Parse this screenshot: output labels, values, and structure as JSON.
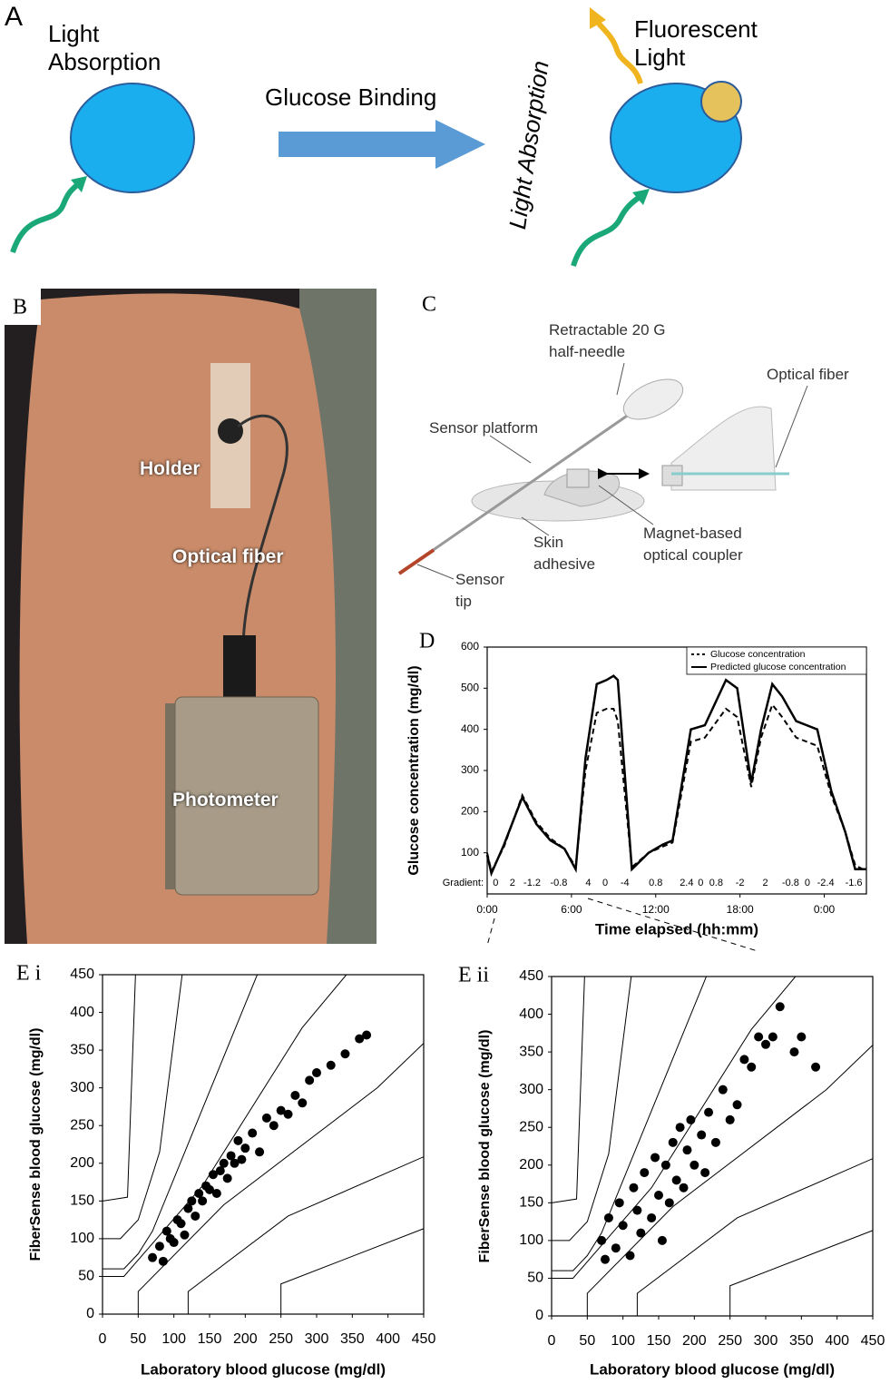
{
  "panel_a": {
    "label": "A",
    "left_text": "Light Absorption",
    "arrow_text": "Glucose Binding",
    "rotated_text": "Light Absorption",
    "right_text": "Fluorescent Light"
  },
  "panel_b": {
    "label": "B",
    "holder": "Holder",
    "fiber": "Optical fiber",
    "photometer": "Photometer"
  },
  "panel_c": {
    "label": "C",
    "needle": "Retractable 20 G half-needle",
    "platform": "Sensor platform",
    "fiber": "Optical fiber",
    "adhesive": "Skin adhesive",
    "coupler": "Magnet-based optical coupler",
    "tip": "Sensor tip"
  },
  "chart_data": [
    {
      "type": "line",
      "label": "D",
      "xlabel": "Time elapsed (hh:mm)",
      "ylabel": "Glucose concentration (mg/dl)",
      "xlim": [
        0,
        27
      ],
      "ylim": [
        0,
        600
      ],
      "xticks": [
        {
          "value": 0,
          "label": "0:00"
        },
        {
          "value": 6,
          "label": "6:00"
        },
        {
          "value": 12,
          "label": "12:00"
        },
        {
          "value": 18,
          "label": "18:00"
        },
        {
          "value": 24,
          "label": "0:00"
        }
      ],
      "yticks": [
        100,
        200,
        300,
        400,
        500,
        600
      ],
      "legend": "upper right",
      "gradient_label": "Gradient:",
      "gradients": [
        {
          "x": 0.6,
          "value": 0
        },
        {
          "x": 1.8,
          "value": 2
        },
        {
          "x": 3.2,
          "value": -1.2
        },
        {
          "x": 5.1,
          "value": -0.8
        },
        {
          "x": 7.2,
          "value": 4
        },
        {
          "x": 8.4,
          "value": 0
        },
        {
          "x": 9.8,
          "value": -4
        },
        {
          "x": 12.0,
          "value": 0.8
        },
        {
          "x": 14.2,
          "value": 2.4
        },
        {
          "x": 15.2,
          "value": 0
        },
        {
          "x": 16.3,
          "value": 0.8
        },
        {
          "x": 18.0,
          "value": -2
        },
        {
          "x": 19.8,
          "value": 2
        },
        {
          "x": 21.6,
          "value": -0.8
        },
        {
          "x": 22.8,
          "value": 0
        },
        {
          "x": 24.1,
          "value": -2.4
        },
        {
          "x": 26.1,
          "value": -1.6
        }
      ],
      "x": [
        0,
        0.3,
        1.2,
        2.5,
        3.5,
        4.5,
        5.5,
        6.3,
        7.0,
        7.8,
        8.5,
        9.0,
        9.3,
        10.3,
        11.5,
        12.5,
        13.2,
        14.5,
        15.5,
        17.0,
        17.8,
        18.8,
        19.5,
        20.3,
        21.0,
        22.0,
        23.5,
        24.5,
        25.5,
        26.2,
        27.0
      ],
      "series": [
        {
          "name": "Glucose concentration",
          "color": "#000000",
          "style": "dashed",
          "values": [
            100,
            55,
            115,
            240,
            175,
            135,
            110,
            65,
            300,
            440,
            450,
            450,
            420,
            65,
            100,
            115,
            125,
            370,
            380,
            450,
            430,
            260,
            380,
            460,
            430,
            380,
            360,
            240,
            150,
            70,
            55
          ]
        },
        {
          "name": "Predicted glucose concentration",
          "color": "#000000",
          "style": "solid",
          "values": [
            95,
            50,
            120,
            235,
            170,
            130,
            110,
            60,
            330,
            510,
            520,
            530,
            520,
            60,
            100,
            120,
            130,
            400,
            410,
            520,
            500,
            270,
            400,
            510,
            480,
            420,
            400,
            250,
            150,
            60,
            60
          ]
        }
      ]
    },
    {
      "type": "scatter",
      "label": "E i",
      "xlabel": "Laboratory blood glucose (mg/dl)",
      "ylabel": "FiberSense blood glucose (mg/dl)",
      "xlim": [
        0,
        450
      ],
      "ylim": [
        0,
        450
      ],
      "xticks": [
        0,
        50,
        100,
        150,
        200,
        250,
        300,
        350,
        400,
        450
      ],
      "yticks": [
        0,
        50,
        100,
        150,
        200,
        250,
        300,
        350,
        400,
        450
      ],
      "color": "#000000",
      "zone_lines": [
        {
          "x": [
            0,
            30,
            140,
            280,
            430
          ],
          "y": [
            50,
            50,
            170,
            380,
            550
          ]
        },
        {
          "x": [
            50,
            50,
            170,
            385,
            550
          ],
          "y": [
            0,
            30,
            145,
            300,
            450
          ]
        },
        {
          "x": [
            0,
            30,
            50,
            70,
            260
          ],
          "y": [
            60,
            60,
            80,
            110,
            550
          ]
        },
        {
          "x": [
            120,
            120,
            260,
            550
          ],
          "y": [
            0,
            30,
            130,
            250
          ]
        },
        {
          "x": [
            0,
            25,
            50,
            80,
            125
          ],
          "y": [
            100,
            100,
            125,
            215,
            550
          ]
        },
        {
          "x": [
            250,
            250,
            550
          ],
          "y": [
            0,
            40,
            150
          ]
        },
        {
          "x": [
            0,
            35,
            50
          ],
          "y": [
            150,
            155,
            550
          ]
        }
      ],
      "x": [
        70,
        80,
        85,
        90,
        95,
        100,
        105,
        110,
        115,
        120,
        125,
        130,
        135,
        140,
        145,
        150,
        155,
        160,
        165,
        170,
        175,
        180,
        185,
        190,
        195,
        200,
        210,
        220,
        230,
        240,
        250,
        260,
        270,
        280,
        290,
        300,
        320,
        340,
        360,
        370
      ],
      "values": [
        75,
        90,
        70,
        110,
        100,
        95,
        125,
        120,
        105,
        140,
        150,
        130,
        160,
        150,
        170,
        165,
        185,
        160,
        190,
        200,
        180,
        210,
        200,
        230,
        205,
        220,
        240,
        215,
        260,
        250,
        270,
        265,
        290,
        280,
        310,
        320,
        330,
        345,
        365,
        370
      ]
    },
    {
      "type": "scatter",
      "label": "E ii",
      "xlabel": "Laboratory blood glucose (mg/dl)",
      "ylabel": "FiberSense blood glucose (mg/dl)",
      "xlim": [
        0,
        450
      ],
      "ylim": [
        0,
        450
      ],
      "xticks": [
        0,
        50,
        100,
        150,
        200,
        250,
        300,
        350,
        400,
        450
      ],
      "yticks": [
        0,
        50,
        100,
        150,
        200,
        250,
        300,
        350,
        400,
        450
      ],
      "color": "#000000",
      "zone_lines": [
        {
          "x": [
            0,
            30,
            140,
            280,
            430
          ],
          "y": [
            50,
            50,
            170,
            380,
            550
          ]
        },
        {
          "x": [
            50,
            50,
            170,
            385,
            550
          ],
          "y": [
            0,
            30,
            145,
            300,
            450
          ]
        },
        {
          "x": [
            0,
            30,
            50,
            70,
            260
          ],
          "y": [
            60,
            60,
            80,
            110,
            550
          ]
        },
        {
          "x": [
            120,
            120,
            260,
            550
          ],
          "y": [
            0,
            30,
            130,
            250
          ]
        },
        {
          "x": [
            0,
            25,
            50,
            80,
            125
          ],
          "y": [
            100,
            100,
            125,
            215,
            550
          ]
        },
        {
          "x": [
            250,
            250,
            550
          ],
          "y": [
            0,
            40,
            150
          ]
        },
        {
          "x": [
            0,
            35,
            50
          ],
          "y": [
            150,
            155,
            550
          ]
        }
      ],
      "x": [
        70,
        75,
        80,
        90,
        95,
        100,
        110,
        115,
        120,
        125,
        130,
        140,
        145,
        150,
        155,
        160,
        165,
        170,
        175,
        180,
        185,
        190,
        195,
        200,
        210,
        215,
        220,
        230,
        240,
        250,
        260,
        270,
        280,
        290,
        300,
        310,
        320,
        340,
        350,
        370
      ],
      "values": [
        100,
        75,
        130,
        90,
        150,
        120,
        80,
        170,
        140,
        110,
        190,
        130,
        210,
        160,
        100,
        200,
        150,
        230,
        180,
        250,
        170,
        220,
        260,
        200,
        240,
        190,
        270,
        230,
        300,
        260,
        280,
        340,
        330,
        370,
        360,
        370,
        410,
        350,
        370,
        330
      ]
    }
  ]
}
